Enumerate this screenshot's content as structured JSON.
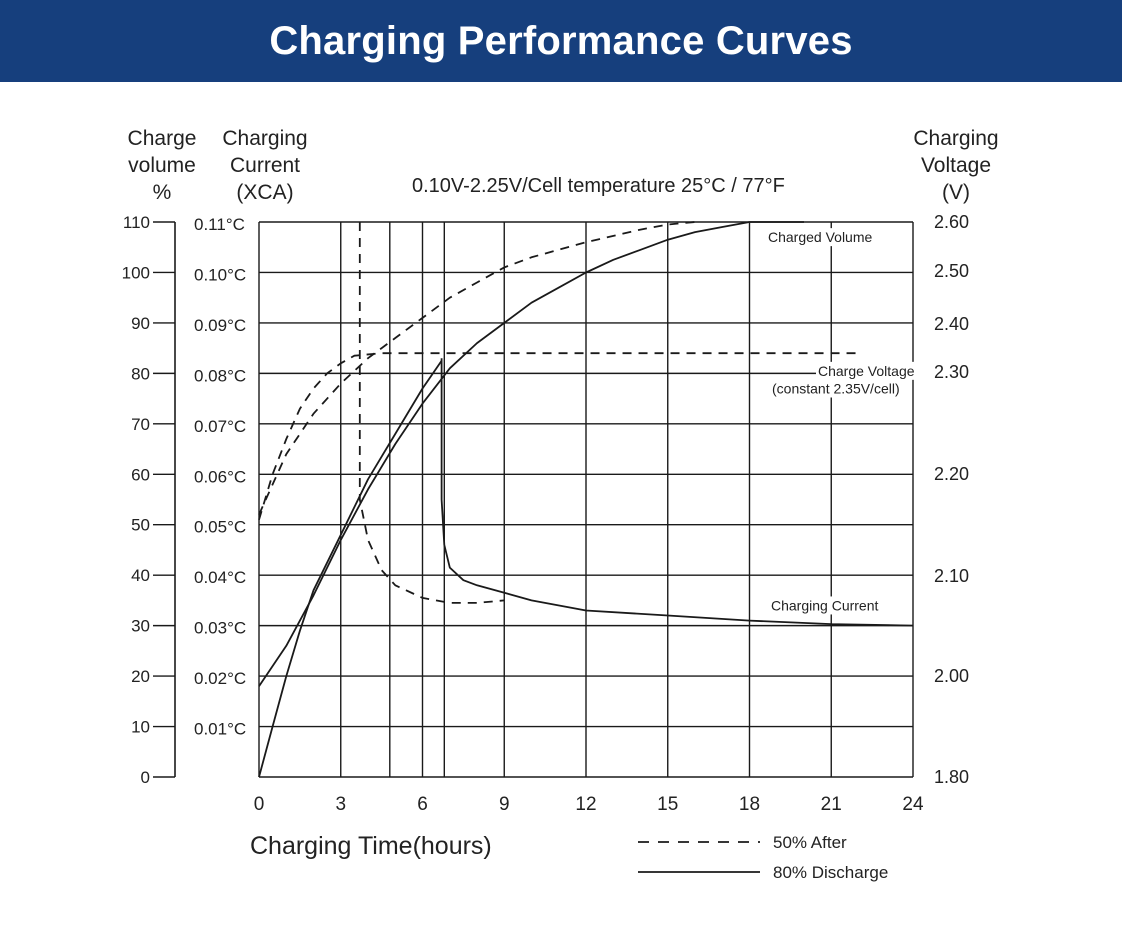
{
  "header": {
    "title": "Charging Performance Curves"
  },
  "chart_data": {
    "type": "line",
    "subtitle": "0.10V-2.25V/Cell   temperature 25°C  / 77°F",
    "xlabel": "Charging Time(hours)",
    "x_ticks": [
      "0",
      "3",
      "6",
      "9",
      "12",
      "15",
      "18",
      "21",
      "24"
    ],
    "xlim": [
      0,
      24
    ],
    "axes": {
      "volume": {
        "label_lines": [
          "Charge",
          "volume",
          "%"
        ],
        "range": [
          0,
          110
        ],
        "ticks": [
          "0",
          "10",
          "20",
          "30",
          "40",
          "50",
          "60",
          "70",
          "80",
          "90",
          "100",
          "110"
        ]
      },
      "current": {
        "label_lines": [
          "Charging",
          "Current",
          "(XCA)"
        ],
        "range": [
          0,
          0.11
        ],
        "ticks": [
          "0.01°C",
          "0.02°C",
          "0.03°C",
          "0.04°C",
          "0.05°C",
          "0.06°C",
          "0.07°C",
          "0.08°C",
          "0.09°C",
          "0.10°C",
          "0.11°C"
        ]
      },
      "voltage": {
        "label_lines": [
          "Charging",
          "Voltage",
          "(V)"
        ],
        "ticks": [
          "1.80",
          "2.00",
          "2.10",
          "2.20",
          "2.30",
          "2.40",
          "2.50",
          "2.60"
        ]
      }
    },
    "grid": true,
    "annotations": [
      {
        "text": "Charged Volume",
        "near": "top-right",
        "at_volume": 107
      },
      {
        "text": "Charge Voltage",
        "near": "right",
        "at_volume": 80.5
      },
      {
        "text": "(constant 2.35V/cell)",
        "near": "right",
        "at_volume": 77
      },
      {
        "text": "Charging Current",
        "near": "lower-right",
        "at_volume": 34
      }
    ],
    "legend": {
      "placement": "bottom-right",
      "entries": [
        {
          "label": "50%  After",
          "style": "dashed"
        },
        {
          "label": "80%  Discharge",
          "style": "solid"
        }
      ]
    },
    "series": [
      {
        "group": "Charged Volume",
        "style": "dashed",
        "points": [
          [
            0,
            52
          ],
          [
            1,
            64
          ],
          [
            2,
            72
          ],
          [
            3,
            78
          ],
          [
            4,
            83
          ],
          [
            5,
            87
          ],
          [
            6,
            91
          ],
          [
            7,
            95
          ],
          [
            8,
            98
          ],
          [
            9,
            101
          ],
          [
            10,
            103
          ],
          [
            12,
            106
          ],
          [
            14,
            108.5
          ],
          [
            15,
            109.5
          ],
          [
            16,
            110
          ]
        ]
      },
      {
        "group": "Charged Volume",
        "style": "solid",
        "points": [
          [
            0,
            18
          ],
          [
            1,
            26
          ],
          [
            2,
            36
          ],
          [
            3,
            47
          ],
          [
            4,
            57
          ],
          [
            5,
            66
          ],
          [
            6,
            74
          ],
          [
            7,
            81
          ],
          [
            8,
            86
          ],
          [
            9,
            90
          ],
          [
            10,
            94
          ],
          [
            11,
            97
          ],
          [
            12,
            100
          ],
          [
            13,
            102.5
          ],
          [
            14,
            104.5
          ],
          [
            15,
            106.5
          ],
          [
            16,
            108
          ],
          [
            17,
            109
          ],
          [
            18,
            110
          ],
          [
            20,
            110
          ]
        ]
      },
      {
        "group": "Charge Voltage",
        "style": "dashed",
        "points": [
          [
            0,
            51
          ],
          [
            0.5,
            60
          ],
          [
            1,
            67
          ],
          [
            1.5,
            73
          ],
          [
            2,
            77
          ],
          [
            2.5,
            80
          ],
          [
            3,
            82
          ],
          [
            3.5,
            83.5
          ],
          [
            4.5,
            84
          ],
          [
            22,
            84
          ]
        ]
      },
      {
        "group": "Charge Voltage",
        "style": "solid",
        "points": [
          [
            0,
            0
          ],
          [
            0.5,
            10
          ],
          [
            1,
            20
          ],
          [
            1.5,
            29
          ],
          [
            2,
            37
          ],
          [
            3,
            48
          ],
          [
            4,
            59
          ],
          [
            5,
            68
          ],
          [
            6,
            77
          ],
          [
            6.7,
            82.5
          ]
        ]
      },
      {
        "group": "Charging Current",
        "style": "dashed",
        "points": [
          [
            3.7,
            110
          ],
          [
            3.7,
            100
          ],
          [
            3.7,
            80
          ],
          [
            3.7,
            65
          ],
          [
            3.7,
            55
          ],
          [
            4,
            47
          ],
          [
            4.5,
            41
          ],
          [
            5,
            38
          ],
          [
            6,
            35.5
          ],
          [
            7,
            34.5
          ],
          [
            8,
            34.5
          ],
          [
            9,
            35
          ]
        ]
      },
      {
        "group": "Charging Current",
        "style": "solid",
        "points": [
          [
            6.7,
            83
          ],
          [
            6.7,
            70
          ],
          [
            6.7,
            55
          ],
          [
            6.8,
            46
          ],
          [
            7,
            41.5
          ],
          [
            7.5,
            39
          ],
          [
            8,
            38
          ],
          [
            9,
            36.5
          ],
          [
            10,
            35
          ],
          [
            12,
            33
          ],
          [
            15,
            32
          ],
          [
            18,
            31
          ],
          [
            21,
            30.3
          ],
          [
            24,
            30
          ]
        ]
      }
    ]
  }
}
